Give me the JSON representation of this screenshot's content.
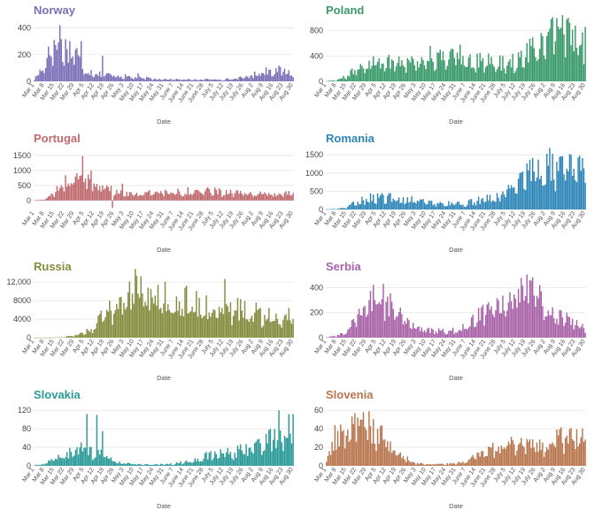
{
  "x_label": "Date",
  "chart_data": [
    {
      "type": "bar",
      "title": "Norway",
      "color": "#7b6fb8",
      "xlabel": "Date",
      "ylabel": "",
      "ylim": [
        0,
        450
      ],
      "yticks": [
        0,
        200,
        400
      ],
      "ytick_labels": [
        "0",
        "200",
        "400"
      ],
      "grid": true,
      "x_ticks": [
        "Mar 1",
        "Mar 8",
        "Mar 15",
        "Mar 22",
        "Mar 29",
        "Apr 5",
        "Apr 12",
        "Apr 19",
        "Apr 26",
        "May 3",
        "May 10",
        "May 17",
        "May 24",
        "May 31",
        "June 7",
        "June 14",
        "June 21",
        "June 28",
        "July 5",
        "July 12",
        "July 19",
        "July 26",
        "Aug 2",
        "Aug 9",
        "Aug 16",
        "Aug 23",
        "Aug 30"
      ],
      "weekly_values": [
        15,
        120,
        300,
        260,
        240,
        90,
        70,
        50,
        50,
        40,
        30,
        25,
        20,
        20,
        15,
        15,
        12,
        15,
        15,
        15,
        20,
        30,
        50,
        80,
        90,
        80,
        60
      ],
      "spikes": [
        [
          10,
          260
        ],
        [
          14,
          310
        ],
        [
          18,
          420
        ],
        [
          30,
          250
        ],
        [
          33,
          300
        ],
        [
          48,
          190
        ],
        [
          73,
          60
        ]
      ]
    },
    {
      "type": "bar",
      "title": "Poland",
      "color": "#3a9a6a",
      "xlabel": "Date",
      "ylabel": "",
      "ylim": [
        0,
        950
      ],
      "yticks": [
        0,
        400,
        800
      ],
      "ytick_labels": [
        "0",
        "400",
        "800"
      ],
      "grid": true,
      "x_ticks": [
        "Mar 1",
        "Mar 8",
        "Mar 15",
        "Mar 22",
        "Mar 29",
        "Apr 5",
        "Apr 12",
        "Apr 19",
        "Apr 26",
        "May 3",
        "May 10",
        "May 17",
        "May 24",
        "May 31",
        "June 7",
        "June 14",
        "June 21",
        "June 28",
        "July 5",
        "July 12",
        "July 19",
        "July 26",
        "Aug 2",
        "Aug 9",
        "Aug 16",
        "Aug 23",
        "Aug 30"
      ],
      "weekly_values": [
        5,
        20,
        80,
        200,
        300,
        360,
        320,
        330,
        340,
        320,
        340,
        360,
        380,
        400,
        380,
        360,
        320,
        300,
        300,
        330,
        420,
        560,
        680,
        760,
        780,
        720,
        700
      ],
      "spikes": [
        [
          73,
          560
        ],
        [
          80,
          500
        ],
        [
          94,
          580
        ],
        [
          165,
          850
        ],
        [
          175,
          880
        ],
        [
          182,
          860
        ]
      ]
    },
    {
      "type": "bar",
      "title": "Portugal",
      "color": "#c06a6e",
      "xlabel": "Date",
      "ylabel": "",
      "ylim": [
        -300,
        1700
      ],
      "yticks": [
        0,
        500,
        1000,
        1500
      ],
      "ytick_labels": [
        "0",
        "500",
        "1000",
        "1500"
      ],
      "grid": true,
      "x_ticks": [
        "Mar 1",
        "Mar 8",
        "Mar 15",
        "Mar 22",
        "Mar 29",
        "Apr 5",
        "Apr 12",
        "Apr 19",
        "Apr 26",
        "May 3",
        "May 10",
        "May 17",
        "May 24",
        "May 31",
        "June 7",
        "June 14",
        "June 21",
        "June 28",
        "July 5",
        "July 12",
        "July 19",
        "July 26",
        "Aug 2",
        "Aug 9",
        "Aug 16",
        "Aug 23",
        "Aug 30"
      ],
      "weekly_values": [
        5,
        40,
        250,
        600,
        750,
        700,
        650,
        500,
        300,
        230,
        250,
        250,
        260,
        290,
        300,
        320,
        330,
        320,
        310,
        290,
        260,
        230,
        230,
        230,
        220,
        230,
        260
      ],
      "spikes": [
        [
          34,
          1480
        ],
        [
          40,
          1000
        ],
        [
          55,
          -250
        ],
        [
          62,
          560
        ]
      ]
    },
    {
      "type": "bar",
      "title": "Romania",
      "color": "#2e86b8",
      "xlabel": "Date",
      "ylabel": "",
      "ylim": [
        0,
        1650
      ],
      "yticks": [
        0,
        500,
        1000,
        1500
      ],
      "ytick_labels": [
        "0",
        "500",
        "1000",
        "1500"
      ],
      "grid": true,
      "x_ticks": [
        "Mar 1",
        "Mar 8",
        "Mar 15",
        "Mar 22",
        "Mar 29",
        "Apr 5",
        "Apr 12",
        "Apr 19",
        "Apr 26",
        "May 3",
        "May 10",
        "May 17",
        "May 24",
        "May 31",
        "June 7",
        "June 14",
        "June 21",
        "June 28",
        "July 5",
        "July 12",
        "July 19",
        "July 26",
        "Aug 2",
        "Aug 9",
        "Aug 16",
        "Aug 23",
        "Aug 30"
      ],
      "weekly_values": [
        5,
        15,
        60,
        200,
        320,
        360,
        340,
        300,
        290,
        240,
        220,
        190,
        170,
        160,
        180,
        230,
        300,
        350,
        450,
        650,
        900,
        1100,
        1200,
        1250,
        1250,
        1230,
        1200
      ],
      "spikes": [
        [
          178,
          1480
        ]
      ]
    },
    {
      "type": "bar",
      "title": "Russia",
      "color": "#848c3e",
      "xlabel": "Date",
      "ylabel": "",
      "ylim": [
        0,
        13000
      ],
      "yticks": [
        0,
        4000,
        8000,
        12000
      ],
      "ytick_labels": [
        "0",
        "4000",
        "8000",
        "12,000"
      ],
      "grid": true,
      "x_ticks": [
        "Mar 1",
        "Mar 8",
        "Mar 15",
        "Mar 22",
        "Mar 29",
        "Apr 5",
        "Apr 12",
        "Apr 19",
        "Apr 26",
        "May 3",
        "May 10",
        "May 17",
        "May 24",
        "May 31",
        "June 7",
        "June 14",
        "June 21",
        "June 28",
        "July 5",
        "July 12",
        "July 19",
        "July 26",
        "Aug 2",
        "Aug 9",
        "Aug 16",
        "Aug 23",
        "Aug 30"
      ],
      "weekly_values": [
        2,
        10,
        40,
        150,
        500,
        1100,
        2500,
        5000,
        7000,
        9500,
        11000,
        10000,
        9000,
        8800,
        8800,
        8500,
        7800,
        7000,
        6700,
        6600,
        6400,
        6000,
        5700,
        5400,
        5100,
        4900,
        4800
      ],
      "spikes": [
        [
          134,
          12700
        ]
      ]
    },
    {
      "type": "bar",
      "title": "Serbia",
      "color": "#a863a8",
      "xlabel": "Date",
      "ylabel": "",
      "ylim": [
        0,
        480
      ],
      "yticks": [
        0,
        200,
        400
      ],
      "ytick_labels": [
        "0",
        "200",
        "400"
      ],
      "grid": true,
      "x_ticks": [
        "Mar 1",
        "Mar 8",
        "Mar 15",
        "Mar 22",
        "Mar 29",
        "Apr 5",
        "Apr 12",
        "Apr 19",
        "Apr 26",
        "May 3",
        "May 10",
        "May 17",
        "May 24",
        "May 31",
        "June 7",
        "June 14",
        "June 21",
        "June 28",
        "July 5",
        "July 12",
        "July 19",
        "July 26",
        "Aug 2",
        "Aug 9",
        "Aug 16",
        "Aug 23",
        "Aug 30"
      ],
      "weekly_values": [
        3,
        15,
        50,
        150,
        280,
        370,
        320,
        220,
        130,
        80,
        60,
        55,
        50,
        60,
        90,
        150,
        260,
        310,
        340,
        360,
        380,
        340,
        270,
        200,
        150,
        110,
        80
      ],
      "spikes": [
        [
          40,
          430
        ],
        [
          143,
          460
        ],
        [
          150,
          420
        ]
      ]
    },
    {
      "type": "bar",
      "title": "Slovakia",
      "color": "#2a9a98",
      "xlabel": "Date",
      "ylabel": "",
      "ylim": [
        0,
        130
      ],
      "yticks": [
        0,
        40,
        80,
        120
      ],
      "ytick_labels": [
        "0",
        "40",
        "80",
        "120"
      ],
      "grid": true,
      "x_ticks": [
        "Mar 1",
        "Mar 8",
        "Mar 15",
        "Mar 22",
        "Mar 29",
        "Apr 5",
        "Apr 12",
        "Apr 19",
        "Apr 26",
        "May 3",
        "May 10",
        "May 17",
        "May 24",
        "May 31",
        "June 7",
        "June 14",
        "June 21",
        "June 28",
        "July 5",
        "July 12",
        "July 19",
        "July 26",
        "Aug 2",
        "Aug 9",
        "Aug 16",
        "Aug 23",
        "Aug 30"
      ],
      "weekly_values": [
        1,
        5,
        15,
        25,
        30,
        45,
        30,
        25,
        10,
        6,
        4,
        3,
        3,
        4,
        5,
        8,
        12,
        20,
        25,
        28,
        30,
        35,
        40,
        50,
        65,
        75,
        85
      ],
      "spikes": [
        [
          37,
          112
        ],
        [
          44,
          110
        ],
        [
          48,
          75
        ],
        [
          172,
          120
        ],
        [
          182,
          112
        ]
      ]
    },
    {
      "type": "bar",
      "title": "Slovenia",
      "color": "#b8764e",
      "xlabel": "Date",
      "ylabel": "",
      "ylim": [
        0,
        65
      ],
      "yticks": [
        0,
        20,
        40,
        60
      ],
      "ytick_labels": [
        "0",
        "20",
        "40",
        "60"
      ],
      "grid": true,
      "x_ticks": [
        "Mar 1",
        "Mar 8",
        "Mar 15",
        "Mar 22",
        "Mar 29",
        "Apr 5",
        "Apr 12",
        "Apr 19",
        "Apr 26",
        "May 3",
        "May 10",
        "May 17",
        "May 24",
        "May 31",
        "June 7",
        "June 14",
        "June 21",
        "June 28",
        "July 5",
        "July 12",
        "July 19",
        "July 26",
        "Aug 2",
        "Aug 9",
        "Aug 16",
        "Aug 23",
        "Aug 30"
      ],
      "weekly_values": [
        5,
        30,
        40,
        42,
        45,
        38,
        28,
        15,
        8,
        3,
        2,
        2,
        2,
        3,
        5,
        10,
        15,
        20,
        22,
        25,
        22,
        20,
        22,
        28,
        32,
        33,
        30
      ],
      "spikes": [
        [
          20,
          57
        ],
        [
          26,
          58
        ],
        [
          6,
          44
        ]
      ]
    }
  ]
}
